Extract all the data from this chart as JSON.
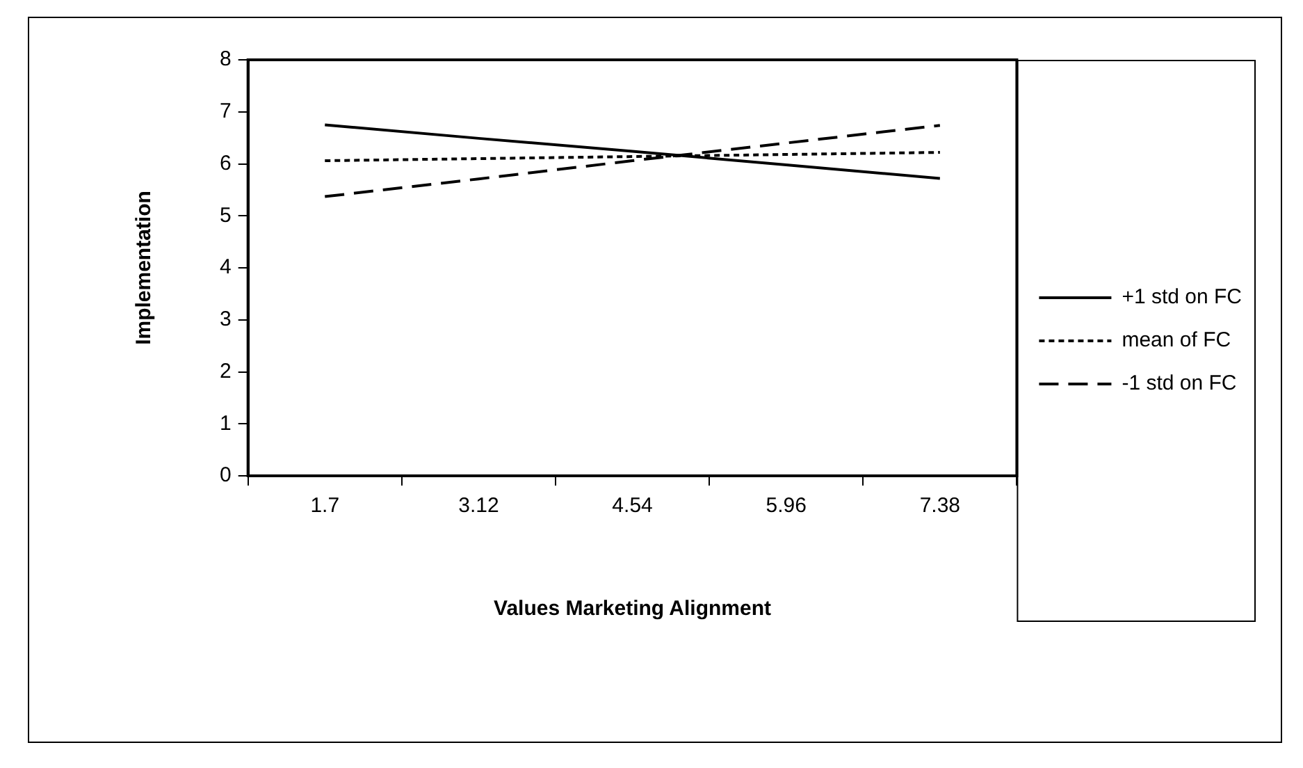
{
  "chart_data": {
    "type": "line",
    "xlabel": "Values Marketing Alignment",
    "ylabel": "Implementation",
    "categories": [
      "1.7",
      "3.12",
      "4.54",
      "5.96",
      "7.38"
    ],
    "series": [
      {
        "name": "+1 std on FC",
        "color": "#000000",
        "line_style": "solid",
        "values": [
          6.75,
          6.49,
          6.24,
          5.98,
          5.72
        ]
      },
      {
        "name": "mean of FC",
        "color": "#000000",
        "line_style": "dotted",
        "values": [
          6.06,
          6.1,
          6.14,
          6.18,
          6.22
        ]
      },
      {
        "name": "-1 std on FC",
        "color": "#000000",
        "line_style": "dashed",
        "values": [
          5.37,
          5.71,
          6.06,
          6.4,
          6.74
        ]
      }
    ],
    "ylim": [
      0,
      8
    ],
    "yticks": [
      0,
      1,
      2,
      3,
      4,
      5,
      6,
      7,
      8
    ],
    "grid": false,
    "legend": "right",
    "marker": "none"
  }
}
